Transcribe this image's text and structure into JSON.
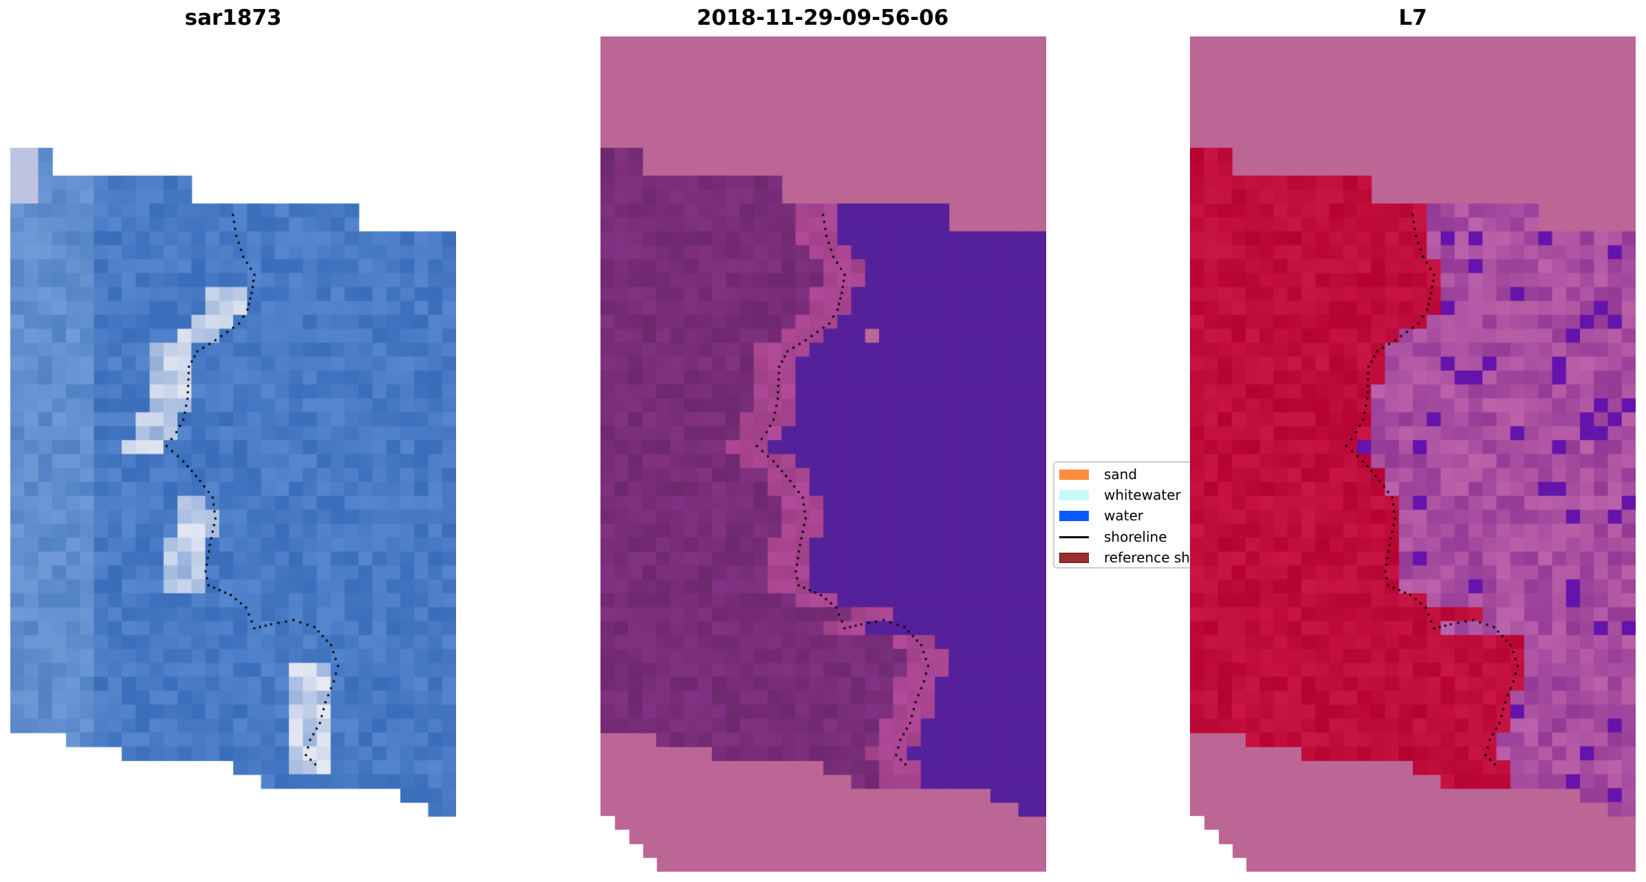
{
  "panels": [
    {
      "title": "sar1873"
    },
    {
      "title": "2018-11-29-09-56-06"
    },
    {
      "title": "L7"
    }
  ],
  "legend": {
    "entries": [
      {
        "label": "sand",
        "type": "patch",
        "color": "#ff8c3c"
      },
      {
        "label": "whitewater",
        "type": "patch",
        "color": "#c8fafa"
      },
      {
        "label": "water",
        "type": "patch",
        "color": "#0a5aff"
      },
      {
        "label": "shoreline",
        "type": "line",
        "color": "#000000"
      },
      {
        "label": "reference shoreline",
        "type": "patch",
        "color": "#9a3030"
      }
    ]
  },
  "colors": {
    "nodata_pink": "#bc6696",
    "water_class": "#55219a",
    "sar_water": "#4a7cc4",
    "l7_land": "#c10a3c",
    "l7_sea": "#a54e9e"
  }
}
